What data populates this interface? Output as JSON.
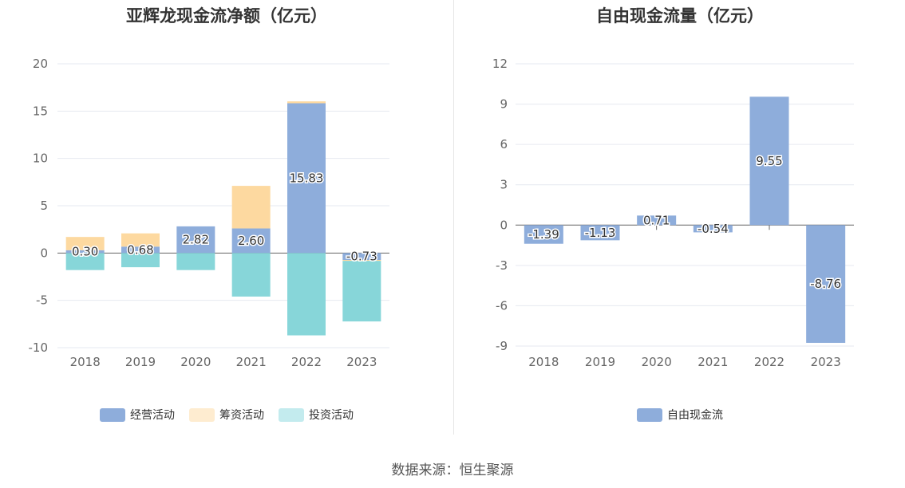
{
  "source": "数据来源：恒生聚源",
  "colors": {
    "operating": "#8eaddb",
    "financing": "#fdd9a0",
    "investing": "#87d6d9",
    "legend_investing": "#c3ebee",
    "legend_financing": "#feecd0",
    "free": "#8eaddb"
  },
  "chart_data": [
    {
      "type": "bar",
      "stacked": true,
      "title": "亚辉龙现金流净额（亿元）",
      "categories": [
        "2018",
        "2019",
        "2020",
        "2021",
        "2022",
        "2023"
      ],
      "ylim": [
        -10,
        20
      ],
      "yticks": [
        20,
        15,
        10,
        5,
        0,
        -5,
        -10
      ],
      "grid": true,
      "legend_position": "bottom",
      "series": [
        {
          "name": "经营活动",
          "values": [
            0.3,
            0.68,
            2.82,
            2.6,
            15.83,
            -0.73
          ]
        },
        {
          "name": "筹资活动",
          "values": [
            1.4,
            1.4,
            0.0,
            4.5,
            0.2,
            -0.1
          ]
        },
        {
          "name": "投资活动",
          "values": [
            -1.8,
            -1.5,
            -1.8,
            -4.6,
            -8.7,
            -6.4
          ]
        }
      ],
      "data_labels": [
        "0.30",
        "0.68",
        "2.82",
        "2.60",
        "15.83",
        "-0.73"
      ]
    },
    {
      "type": "bar",
      "title": "自由现金流量（亿元）",
      "categories": [
        "2018",
        "2019",
        "2020",
        "2021",
        "2022",
        "2023"
      ],
      "ylim": [
        -9,
        12
      ],
      "yticks": [
        12,
        9,
        6,
        3,
        0,
        -3,
        -6,
        -9
      ],
      "grid": true,
      "legend_position": "bottom",
      "series": [
        {
          "name": "自由现金流",
          "values": [
            -1.39,
            -1.13,
            0.71,
            -0.54,
            9.55,
            -8.76
          ]
        }
      ],
      "data_labels": [
        "-1.39",
        "-1.13",
        "0.71",
        "-0.54",
        "9.55",
        "-8.76"
      ]
    }
  ]
}
